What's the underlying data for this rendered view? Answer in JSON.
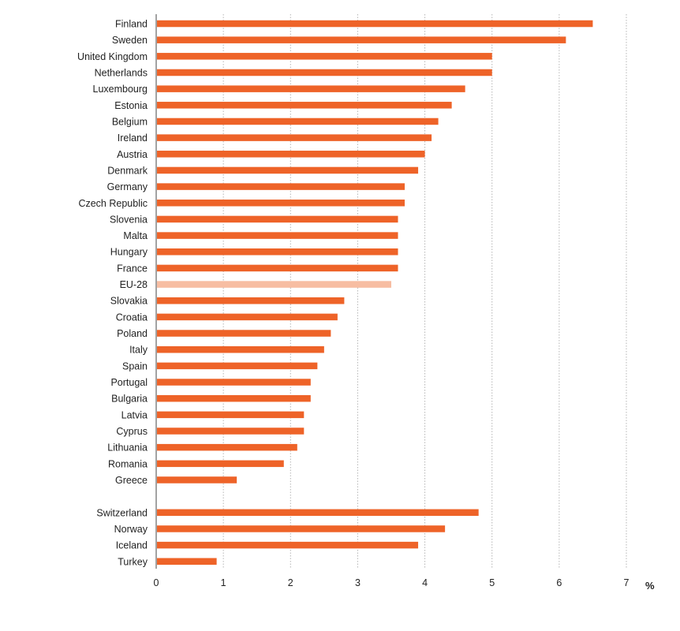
{
  "chart_data": {
    "type": "bar",
    "orientation": "horizontal",
    "unit_label": "%",
    "xlim": [
      0,
      7
    ],
    "x_ticks": [
      "0",
      "1",
      "2",
      "3",
      "4",
      "5",
      "6",
      "7"
    ],
    "grid": "vertical dotted",
    "colors": {
      "bar": "#ee6328",
      "highlight": "#f7bda2"
    },
    "bars": [
      {
        "category": "Finland",
        "value": 6.5
      },
      {
        "category": "Sweden",
        "value": 6.1
      },
      {
        "category": "United Kingdom",
        "value": 5.0
      },
      {
        "category": "Netherlands",
        "value": 5.0
      },
      {
        "category": "Luxembourg",
        "value": 4.6
      },
      {
        "category": "Estonia",
        "value": 4.4
      },
      {
        "category": "Belgium",
        "value": 4.2
      },
      {
        "category": "Ireland",
        "value": 4.1
      },
      {
        "category": "Austria",
        "value": 4.0
      },
      {
        "category": "Denmark",
        "value": 3.9
      },
      {
        "category": "Germany",
        "value": 3.7
      },
      {
        "category": "Czech Republic",
        "value": 3.7
      },
      {
        "category": "Slovenia",
        "value": 3.6
      },
      {
        "category": "Malta",
        "value": 3.6
      },
      {
        "category": "Hungary",
        "value": 3.6
      },
      {
        "category": "France",
        "value": 3.6
      },
      {
        "category": "EU-28",
        "value": 3.5,
        "highlight": true
      },
      {
        "category": "Slovakia",
        "value": 2.8
      },
      {
        "category": "Croatia",
        "value": 2.7
      },
      {
        "category": "Poland",
        "value": 2.6
      },
      {
        "category": "Italy",
        "value": 2.5
      },
      {
        "category": "Spain",
        "value": 2.4
      },
      {
        "category": "Portugal",
        "value": 2.3
      },
      {
        "category": "Bulgaria",
        "value": 2.3
      },
      {
        "category": "Latvia",
        "value": 2.2
      },
      {
        "category": "Cyprus",
        "value": 2.2
      },
      {
        "category": "Lithuania",
        "value": 2.1
      },
      {
        "category": "Romania",
        "value": 1.9
      },
      {
        "category": "Greece",
        "value": 1.2
      },
      {
        "category": "Switzerland",
        "value": 4.8,
        "gap_before": true
      },
      {
        "category": "Norway",
        "value": 4.3
      },
      {
        "category": "Iceland",
        "value": 3.9
      },
      {
        "category": "Turkey",
        "value": 0.9
      }
    ]
  }
}
